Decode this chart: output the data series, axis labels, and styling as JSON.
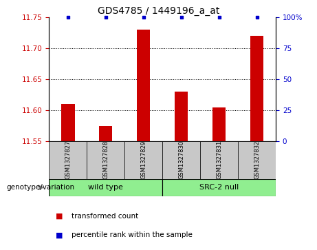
{
  "title": "GDS4785 / 1449196_a_at",
  "samples": [
    "GSM1327827",
    "GSM1327828",
    "GSM1327829",
    "GSM1327830",
    "GSM1327831",
    "GSM1327832"
  ],
  "bar_values": [
    11.61,
    11.575,
    11.73,
    11.63,
    11.605,
    11.72
  ],
  "percentile_values": [
    100,
    100,
    100,
    100,
    100,
    100
  ],
  "ylim_left": [
    11.55,
    11.75
  ],
  "ylim_right": [
    0,
    100
  ],
  "yticks_left": [
    11.55,
    11.6,
    11.65,
    11.7,
    11.75
  ],
  "yticks_right": [
    0,
    25,
    50,
    75,
    100
  ],
  "bar_color": "#cc0000",
  "percentile_color": "#0000cc",
  "bar_width": 0.35,
  "groups": [
    {
      "label": "wild type",
      "indices": [
        0,
        1,
        2
      ],
      "color": "#90ee90"
    },
    {
      "label": "SRC-2 null",
      "indices": [
        3,
        4,
        5
      ],
      "color": "#90ee90"
    }
  ],
  "group_box_color": "#c8c8c8",
  "grid_lines": [
    11.6,
    11.65,
    11.7
  ],
  "legend_items": [
    {
      "color": "#cc0000",
      "label": "transformed count"
    },
    {
      "color": "#0000cc",
      "label": "percentile rank within the sample"
    }
  ],
  "genotype_label": "genotype/variation",
  "left_tick_color": "#cc0000",
  "right_tick_color": "#0000cc",
  "right_tick_labels": [
    "0",
    "25",
    "50",
    "75",
    "100%"
  ],
  "axis_fontsize": 7.5,
  "title_fontsize": 10,
  "sample_fontsize": 6,
  "group_fontsize": 8,
  "legend_fontsize": 7.5
}
